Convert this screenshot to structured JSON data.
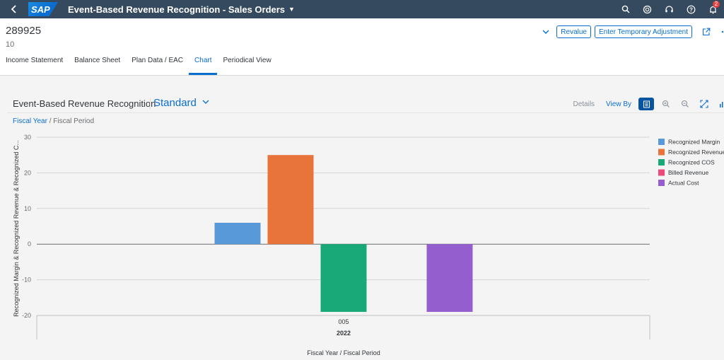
{
  "shell": {
    "logo": "SAP",
    "app_title": "Event-Based Revenue Recognition - Sales Orders",
    "notification_count": "2"
  },
  "header": {
    "title": "289925",
    "subtitle": "10",
    "revalue_label": "Revalue",
    "temp_adjust_label": "Enter Temporary Adjustment"
  },
  "tabs": [
    {
      "label": "Income Statement",
      "active": false
    },
    {
      "label": "Balance Sheet",
      "active": false
    },
    {
      "label": "Plan Data / EAC",
      "active": false
    },
    {
      "label": "Chart",
      "active": true
    },
    {
      "label": "Periodical View",
      "active": false
    }
  ],
  "chart_container": {
    "title": "Event-Based Revenue Recognition",
    "variant": "Standard",
    "details_label": "Details",
    "view_by_label": "View By",
    "breadcrumb_link": "Fiscal Year",
    "breadcrumb_rest": " / Fiscal Period"
  },
  "chart_data": {
    "type": "bar",
    "title": "",
    "xlabel": "Fiscal Year / Fiscal Period",
    "ylabel": "Recognized Margin & Recognized Revenue & Recognized C...",
    "ylim": [
      -20,
      30
    ],
    "yticks": [
      30,
      20,
      10,
      0,
      -10,
      -20
    ],
    "categories": [
      "005"
    ],
    "category_group": "2022",
    "grid": true,
    "legend_position": "right",
    "series": [
      {
        "name": "Recognized Margin",
        "color": "#5899da",
        "values": [
          6
        ]
      },
      {
        "name": "Recognized Revenue",
        "color": "#e8743b",
        "values": [
          25
        ]
      },
      {
        "name": "Recognized COS",
        "color": "#19a979",
        "values": [
          -19
        ]
      },
      {
        "name": "Billed Revenue",
        "color": "#ed4a7b",
        "values": [
          0
        ]
      },
      {
        "name": "Actual Cost",
        "color": "#945ecf",
        "values": [
          -19
        ]
      }
    ]
  }
}
